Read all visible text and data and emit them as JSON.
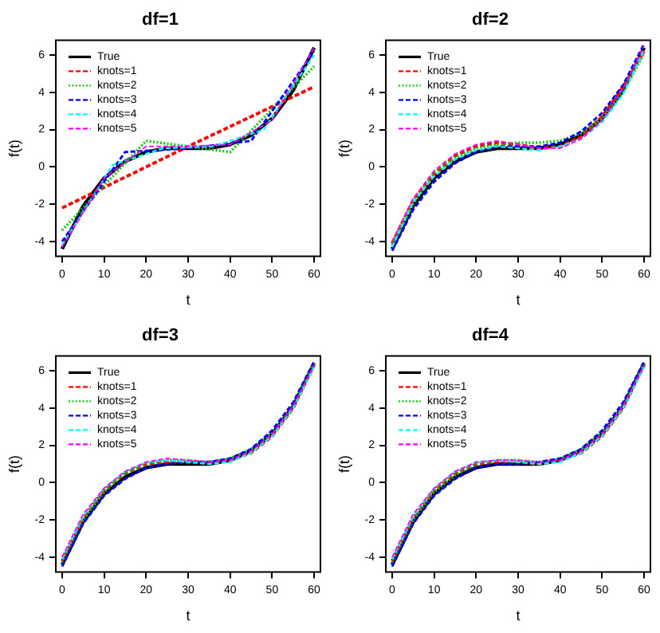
{
  "chart_data": [
    {
      "type": "line",
      "title": "df=1",
      "xlabel": "t",
      "ylabel": "f(t)",
      "x": [
        0,
        5,
        10,
        15,
        20,
        25,
        30,
        35,
        40,
        45,
        50,
        55,
        60
      ],
      "xlim": [
        -1.5,
        61.5
      ],
      "xticks": [
        0,
        10,
        20,
        30,
        40,
        50,
        60
      ],
      "ylim": [
        -4.8,
        6.8
      ],
      "yticks": [
        -4,
        -2,
        0,
        2,
        4,
        6
      ],
      "grid": false,
      "legend": "top left",
      "marker": "none",
      "series": [
        {
          "name": "True",
          "color": "#000000",
          "line_style": "solid",
          "values": [
            -4.4,
            -2.1,
            -0.6,
            0.3,
            0.8,
            1.0,
            1.0,
            1.0,
            1.2,
            1.7,
            2.6,
            4.1,
            6.4
          ]
        },
        {
          "name": "knots=1",
          "color": "#ff0000",
          "line_style": "dashed",
          "x": [
            0,
            30,
            60
          ],
          "values": [
            -2.2,
            1.1,
            4.3
          ]
        },
        {
          "name": "knots=2",
          "color": "#00cc00",
          "line_style": "dotted",
          "x": [
            0,
            20,
            40,
            60
          ],
          "values": [
            -3.4,
            1.4,
            0.8,
            5.4
          ]
        },
        {
          "name": "knots=3",
          "color": "#0000ff",
          "line_style": "dashed",
          "x": [
            0,
            15,
            30,
            45,
            60
          ],
          "values": [
            -4.0,
            0.8,
            1.0,
            1.4,
            6.2
          ]
        },
        {
          "name": "knots=4",
          "color": "#00ffff",
          "line_style": "dashed",
          "x": [
            0,
            12,
            24,
            36,
            48,
            60
          ],
          "values": [
            -4.2,
            0.1,
            1.0,
            1.1,
            2.0,
            6.0
          ]
        },
        {
          "name": "knots=5",
          "color": "#ff00ff",
          "line_style": "dashed",
          "x": [
            0,
            10,
            20,
            30,
            40,
            50,
            60
          ],
          "values": [
            -4.3,
            -0.6,
            1.1,
            1.1,
            1.2,
            2.5,
            6.4
          ]
        }
      ]
    },
    {
      "type": "line",
      "title": "df=2",
      "xlabel": "t",
      "ylabel": "f(t)",
      "x": [
        0,
        5,
        10,
        15,
        20,
        25,
        30,
        35,
        40,
        45,
        50,
        55,
        60
      ],
      "xlim": [
        -1.5,
        61.5
      ],
      "xticks": [
        0,
        10,
        20,
        30,
        40,
        50,
        60
      ],
      "ylim": [
        -4.8,
        6.8
      ],
      "yticks": [
        -4,
        -2,
        0,
        2,
        4,
        6
      ],
      "grid": false,
      "legend": "top left",
      "marker": "none",
      "series": [
        {
          "name": "True",
          "color": "#000000",
          "line_style": "solid",
          "values": [
            -4.4,
            -2.1,
            -0.6,
            0.3,
            0.8,
            1.0,
            1.0,
            1.0,
            1.2,
            1.7,
            2.6,
            4.1,
            6.4
          ]
        },
        {
          "name": "knots=1",
          "color": "#ff0000",
          "line_style": "dashed",
          "values": [
            -4.1,
            -1.8,
            -0.4,
            0.6,
            1.1,
            1.3,
            1.2,
            1.0,
            1.1,
            1.6,
            2.7,
            4.3,
            6.2
          ]
        },
        {
          "name": "knots=2",
          "color": "#00cc00",
          "line_style": "dotted",
          "values": [
            -4.2,
            -2.0,
            -0.3,
            0.5,
            1.0,
            1.2,
            1.3,
            1.3,
            1.4,
            1.8,
            2.6,
            4.0,
            6.1
          ]
        },
        {
          "name": "knots=3",
          "color": "#0000ff",
          "line_style": "dashed",
          "values": [
            -4.5,
            -2.3,
            -0.8,
            0.2,
            0.8,
            1.1,
            1.1,
            1.1,
            1.3,
            1.9,
            2.9,
            4.4,
            6.6
          ]
        },
        {
          "name": "knots=4",
          "color": "#00ffff",
          "line_style": "dashed",
          "values": [
            -4.3,
            -1.9,
            -0.5,
            0.4,
            0.9,
            1.1,
            1.0,
            0.9,
            1.1,
            1.5,
            2.4,
            3.9,
            6.3
          ]
        },
        {
          "name": "knots=5",
          "color": "#ff00ff",
          "line_style": "dashed",
          "values": [
            -4.0,
            -1.7,
            -0.2,
            0.7,
            1.2,
            1.4,
            1.2,
            1.0,
            1.0,
            1.5,
            2.5,
            4.2,
            6.5
          ]
        }
      ]
    },
    {
      "type": "line",
      "title": "df=3",
      "xlabel": "t",
      "ylabel": "f(t)",
      "x": [
        0,
        5,
        10,
        15,
        20,
        25,
        30,
        35,
        40,
        45,
        50,
        55,
        60
      ],
      "xlim": [
        -1.5,
        61.5
      ],
      "xticks": [
        0,
        10,
        20,
        30,
        40,
        50,
        60
      ],
      "ylim": [
        -4.8,
        6.8
      ],
      "yticks": [
        -4,
        -2,
        0,
        2,
        4,
        6
      ],
      "grid": false,
      "legend": "top left",
      "marker": "none",
      "series": [
        {
          "name": "True",
          "color": "#000000",
          "line_style": "solid",
          "values": [
            -4.4,
            -2.1,
            -0.6,
            0.3,
            0.8,
            1.0,
            1.0,
            1.0,
            1.2,
            1.7,
            2.6,
            4.1,
            6.4
          ]
        },
        {
          "name": "knots=1",
          "color": "#ff0000",
          "line_style": "dashed",
          "values": [
            -4.2,
            -1.9,
            -0.4,
            0.5,
            1.0,
            1.1,
            1.1,
            1.1,
            1.2,
            1.6,
            2.5,
            4.0,
            6.3
          ]
        },
        {
          "name": "knots=2",
          "color": "#00cc00",
          "line_style": "dotted",
          "values": [
            -4.3,
            -2.0,
            -0.5,
            0.5,
            1.0,
            1.2,
            1.2,
            1.1,
            1.3,
            1.8,
            2.7,
            4.2,
            6.4
          ]
        },
        {
          "name": "knots=3",
          "color": "#0000ff",
          "line_style": "dashed",
          "values": [
            -4.5,
            -2.2,
            -0.7,
            0.2,
            0.8,
            1.0,
            1.1,
            1.1,
            1.3,
            1.8,
            2.8,
            4.3,
            6.5
          ]
        },
        {
          "name": "knots=4",
          "color": "#00ffff",
          "line_style": "dashed",
          "values": [
            -4.1,
            -1.8,
            -0.3,
            0.6,
            1.1,
            1.2,
            1.1,
            1.0,
            1.1,
            1.6,
            2.5,
            4.0,
            6.2
          ]
        },
        {
          "name": "knots=5",
          "color": "#ff00ff",
          "line_style": "dashed",
          "values": [
            -4.0,
            -1.7,
            -0.3,
            0.6,
            1.1,
            1.3,
            1.2,
            1.1,
            1.2,
            1.7,
            2.6,
            4.1,
            6.3
          ]
        }
      ]
    },
    {
      "type": "line",
      "title": "df=4",
      "xlabel": "t",
      "ylabel": "f(t)",
      "x": [
        0,
        5,
        10,
        15,
        20,
        25,
        30,
        35,
        40,
        45,
        50,
        55,
        60
      ],
      "xlim": [
        -1.5,
        61.5
      ],
      "xticks": [
        0,
        10,
        20,
        30,
        40,
        50,
        60
      ],
      "ylim": [
        -4.8,
        6.8
      ],
      "yticks": [
        -4,
        -2,
        0,
        2,
        4,
        6
      ],
      "grid": false,
      "legend": "top left",
      "marker": "none",
      "series": [
        {
          "name": "True",
          "color": "#000000",
          "line_style": "solid",
          "values": [
            -4.4,
            -2.1,
            -0.6,
            0.3,
            0.8,
            1.0,
            1.0,
            1.0,
            1.2,
            1.7,
            2.6,
            4.1,
            6.4
          ]
        },
        {
          "name": "knots=1",
          "color": "#ff0000",
          "line_style": "dashed",
          "values": [
            -4.2,
            -1.9,
            -0.4,
            0.5,
            1.0,
            1.1,
            1.1,
            1.0,
            1.2,
            1.6,
            2.5,
            4.0,
            6.3
          ]
        },
        {
          "name": "knots=2",
          "color": "#00cc00",
          "line_style": "dotted",
          "values": [
            -4.3,
            -2.0,
            -0.5,
            0.4,
            1.0,
            1.2,
            1.2,
            1.1,
            1.3,
            1.8,
            2.7,
            4.2,
            6.4
          ]
        },
        {
          "name": "knots=3",
          "color": "#0000ff",
          "line_style": "dashed",
          "values": [
            -4.5,
            -2.2,
            -0.7,
            0.2,
            0.8,
            1.0,
            1.0,
            1.1,
            1.3,
            1.8,
            2.8,
            4.3,
            6.5
          ]
        },
        {
          "name": "knots=4",
          "color": "#00ffff",
          "line_style": "dashed",
          "values": [
            -4.1,
            -1.8,
            -0.3,
            0.6,
            1.1,
            1.2,
            1.1,
            1.0,
            1.1,
            1.6,
            2.5,
            4.0,
            6.2
          ]
        },
        {
          "name": "knots=5",
          "color": "#ff00ff",
          "line_style": "dashed",
          "values": [
            -4.0,
            -1.7,
            -0.3,
            0.6,
            1.1,
            1.2,
            1.2,
            1.1,
            1.2,
            1.7,
            2.6,
            4.1,
            6.3
          ]
        }
      ]
    }
  ]
}
